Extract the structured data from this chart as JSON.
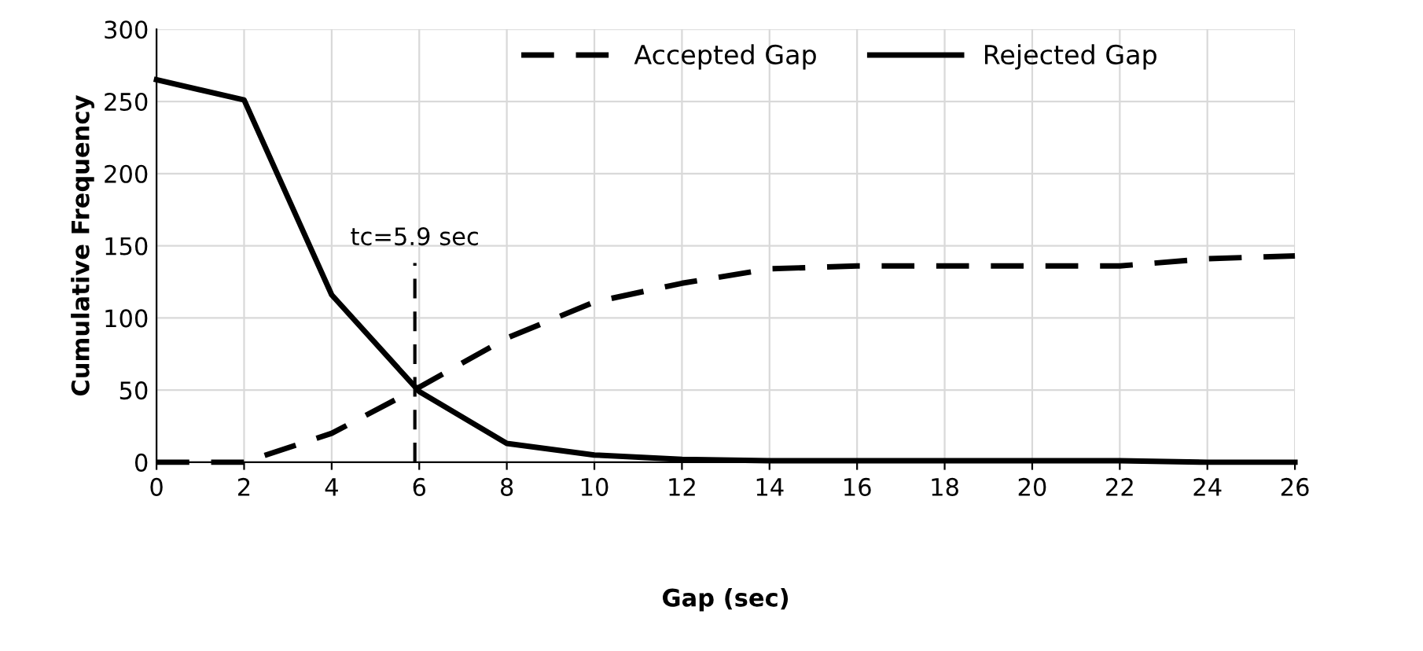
{
  "chart_data": {
    "type": "line",
    "xlabel": "Gap (sec)",
    "ylabel": "Cumulative Frequency",
    "x": [
      0,
      2,
      4,
      6,
      8,
      10,
      12,
      14,
      16,
      18,
      20,
      22,
      24,
      26
    ],
    "series": [
      {
        "name": "Accepted Gap",
        "color": "#000000",
        "line_style": "dashed",
        "values": [
          0,
          0,
          20,
          52,
          86,
          111,
          124,
          134,
          136,
          136,
          136,
          136,
          141,
          143
        ]
      },
      {
        "name": "Rejected Gap",
        "color": "#000000",
        "line_style": "solid",
        "values": [
          265,
          251,
          116,
          49,
          13,
          5,
          2,
          1,
          1,
          1,
          1,
          1,
          0,
          0
        ]
      }
    ],
    "xlim": [
      0,
      26
    ],
    "xticks": [
      0,
      2,
      4,
      6,
      8,
      10,
      12,
      14,
      16,
      18,
      20,
      22,
      24,
      26
    ],
    "ylim": [
      0,
      300
    ],
    "yticks": [
      0,
      50,
      100,
      150,
      200,
      250,
      300
    ],
    "ref_lines": [
      {
        "axis": "x",
        "value": 5.9,
        "label": "tc=5.9 sec",
        "color": "#000000",
        "line_style": "dashed"
      }
    ],
    "grid": true,
    "legend": "top",
    "marker": "none"
  }
}
